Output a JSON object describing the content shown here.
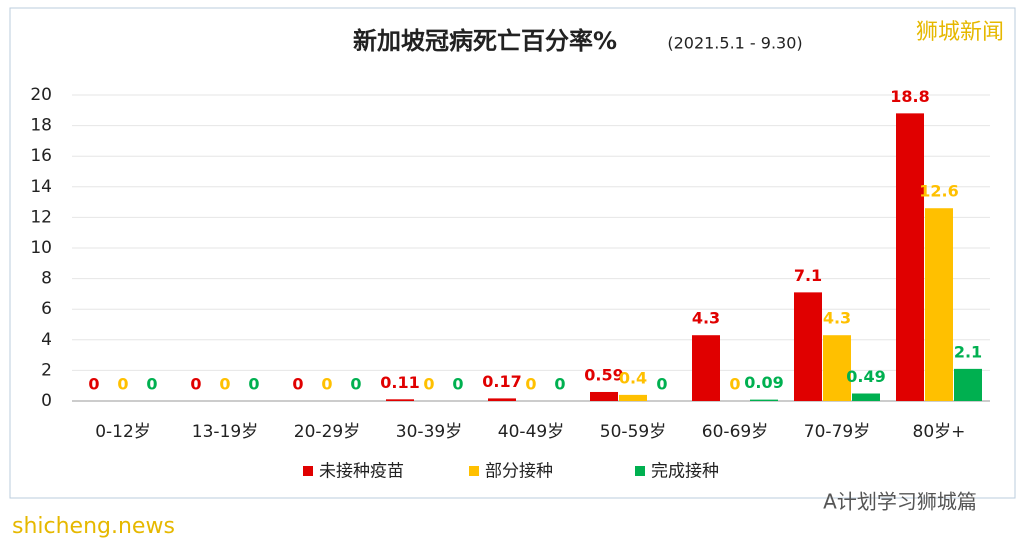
{
  "chart_data": {
    "type": "bar",
    "title": "新加坡冠病死亡百分率%",
    "subtitle": "(2021.5.1 - 9.30)",
    "categories": [
      "0-12岁",
      "13-19岁",
      "20-29岁",
      "30-39岁",
      "40-49岁",
      "50-59岁",
      "60-69岁",
      "70-79岁",
      "80岁+"
    ],
    "series": [
      {
        "name": "未接种疫苗",
        "color": "#e00000",
        "values": [
          0,
          0,
          0,
          0.11,
          0.17,
          0.59,
          4.3,
          7.1,
          18.8
        ]
      },
      {
        "name": "部分接种",
        "color": "#ffc000",
        "values": [
          0,
          0,
          0,
          0,
          0,
          0.4,
          0,
          4.3,
          12.6
        ]
      },
      {
        "name": "完成接种",
        "color": "#00b050",
        "values": [
          0,
          0,
          0,
          0,
          0,
          0,
          0.09,
          0.49,
          2.1
        ]
      }
    ],
    "ylim": [
      0,
      20
    ],
    "yticks": [
      0,
      2,
      4,
      6,
      8,
      10,
      12,
      14,
      16,
      18,
      20
    ],
    "grid": true,
    "legend": "bottom",
    "watermarks": [
      "狮城新闻",
      "shicheng.news",
      "A计划学习狮城篇"
    ]
  }
}
